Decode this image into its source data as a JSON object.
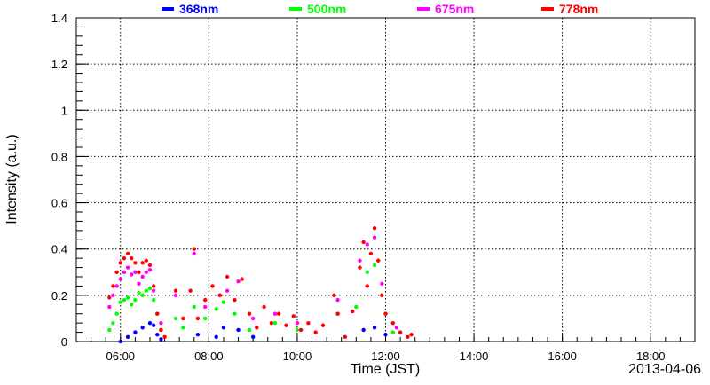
{
  "chart_data": {
    "type": "scatter",
    "xlabel": "Time (JST)",
    "ylabel": "Intensity (a.u.)",
    "date_label": "2013-04-06",
    "xlim": [
      "05:00",
      "19:00"
    ],
    "ylim": [
      0,
      1.4
    ],
    "x_ticks": [
      "06:00",
      "08:00",
      "10:00",
      "12:00",
      "14:00",
      "16:00",
      "18:00"
    ],
    "y_ticks": [
      "0",
      "0.2",
      "0.4",
      "0.6",
      "0.8",
      "1",
      "1.2",
      "1.4"
    ],
    "grid": true,
    "legend_position": "top",
    "series": [
      {
        "name": "368nm",
        "color": "#0000ff",
        "points": [
          [
            "06:00",
            0.0
          ],
          [
            "06:10",
            0.02
          ],
          [
            "06:20",
            0.04
          ],
          [
            "06:30",
            0.06
          ],
          [
            "06:40",
            0.08
          ],
          [
            "06:45",
            0.07
          ],
          [
            "06:50",
            0.03
          ],
          [
            "06:55",
            0.01
          ],
          [
            "07:45",
            0.03
          ],
          [
            "08:10",
            0.02
          ],
          [
            "08:20",
            0.06
          ],
          [
            "08:40",
            0.05
          ],
          [
            "09:00",
            0.02
          ],
          [
            "11:30",
            0.05
          ],
          [
            "11:45",
            0.06
          ],
          [
            "12:00",
            0.03
          ]
        ]
      },
      {
        "name": "500nm",
        "color": "#00ff00",
        "points": [
          [
            "05:45",
            0.05
          ],
          [
            "05:50",
            0.08
          ],
          [
            "05:55",
            0.12
          ],
          [
            "06:00",
            0.17
          ],
          [
            "06:05",
            0.18
          ],
          [
            "06:10",
            0.19
          ],
          [
            "06:15",
            0.16
          ],
          [
            "06:20",
            0.18
          ],
          [
            "06:25",
            0.21
          ],
          [
            "06:30",
            0.2
          ],
          [
            "06:35",
            0.22
          ],
          [
            "06:40",
            0.23
          ],
          [
            "06:45",
            0.18
          ],
          [
            "06:50",
            0.12
          ],
          [
            "06:55",
            0.05
          ],
          [
            "07:15",
            0.1
          ],
          [
            "07:25",
            0.06
          ],
          [
            "07:40",
            0.15
          ],
          [
            "07:55",
            0.1
          ],
          [
            "08:10",
            0.14
          ],
          [
            "08:20",
            0.17
          ],
          [
            "08:35",
            0.12
          ],
          [
            "08:55",
            0.05
          ],
          [
            "09:30",
            0.08
          ],
          [
            "10:00",
            0.05
          ],
          [
            "10:55",
            0.12
          ],
          [
            "11:20",
            0.15
          ],
          [
            "11:35",
            0.3
          ],
          [
            "11:45",
            0.33
          ],
          [
            "11:55",
            0.2
          ],
          [
            "12:10",
            0.04
          ]
        ]
      },
      {
        "name": "675nm",
        "color": "#ff00ff",
        "points": [
          [
            "05:45",
            0.15
          ],
          [
            "05:50",
            0.2
          ],
          [
            "05:55",
            0.24
          ],
          [
            "06:00",
            0.27
          ],
          [
            "06:05",
            0.3
          ],
          [
            "06:10",
            0.32
          ],
          [
            "06:15",
            0.29
          ],
          [
            "06:20",
            0.3
          ],
          [
            "06:25",
            0.25
          ],
          [
            "06:30",
            0.28
          ],
          [
            "06:35",
            0.3
          ],
          [
            "06:40",
            0.31
          ],
          [
            "06:45",
            0.22
          ],
          [
            "06:55",
            0.08
          ],
          [
            "07:15",
            0.2
          ],
          [
            "07:40",
            0.38
          ],
          [
            "07:55",
            0.15
          ],
          [
            "08:15",
            0.2
          ],
          [
            "08:25",
            0.22
          ],
          [
            "08:40",
            0.26
          ],
          [
            "09:00",
            0.1
          ],
          [
            "09:30",
            0.12
          ],
          [
            "10:00",
            0.08
          ],
          [
            "10:55",
            0.18
          ],
          [
            "11:25",
            0.35
          ],
          [
            "11:35",
            0.42
          ],
          [
            "11:45",
            0.45
          ],
          [
            "11:55",
            0.25
          ],
          [
            "12:15",
            0.06
          ]
        ]
      },
      {
        "name": "778nm",
        "color": "#ff0000",
        "points": [
          [
            "05:45",
            0.19
          ],
          [
            "05:50",
            0.24
          ],
          [
            "05:55",
            0.3
          ],
          [
            "06:00",
            0.34
          ],
          [
            "06:05",
            0.36
          ],
          [
            "06:10",
            0.38
          ],
          [
            "06:15",
            0.36
          ],
          [
            "06:20",
            0.34
          ],
          [
            "06:25",
            0.3
          ],
          [
            "06:30",
            0.34
          ],
          [
            "06:35",
            0.35
          ],
          [
            "06:40",
            0.33
          ],
          [
            "06:45",
            0.24
          ],
          [
            "06:50",
            0.12
          ],
          [
            "06:55",
            0.05
          ],
          [
            "07:00",
            0.02
          ],
          [
            "07:15",
            0.22
          ],
          [
            "07:25",
            0.1
          ],
          [
            "07:35",
            0.22
          ],
          [
            "07:40",
            0.4
          ],
          [
            "07:45",
            0.1
          ],
          [
            "07:55",
            0.18
          ],
          [
            "08:05",
            0.24
          ],
          [
            "08:15",
            0.2
          ],
          [
            "08:25",
            0.28
          ],
          [
            "08:35",
            0.18
          ],
          [
            "08:45",
            0.27
          ],
          [
            "08:55",
            0.12
          ],
          [
            "09:05",
            0.06
          ],
          [
            "09:15",
            0.15
          ],
          [
            "09:25",
            0.08
          ],
          [
            "09:35",
            0.12
          ],
          [
            "09:45",
            0.07
          ],
          [
            "09:55",
            0.11
          ],
          [
            "10:05",
            0.05
          ],
          [
            "10:15",
            0.08
          ],
          [
            "10:25",
            0.04
          ],
          [
            "10:35",
            0.07
          ],
          [
            "10:50",
            0.2
          ],
          [
            "10:55",
            0.12
          ],
          [
            "11:05",
            0.02
          ],
          [
            "11:15",
            0.13
          ],
          [
            "11:25",
            0.32
          ],
          [
            "11:30",
            0.43
          ],
          [
            "11:35",
            0.24
          ],
          [
            "11:40",
            0.38
          ],
          [
            "11:45",
            0.49
          ],
          [
            "11:50",
            0.35
          ],
          [
            "11:55",
            0.2
          ],
          [
            "12:00",
            0.12
          ],
          [
            "12:10",
            0.08
          ],
          [
            "12:20",
            0.04
          ],
          [
            "12:30",
            0.02
          ],
          [
            "12:35",
            0.03
          ]
        ]
      }
    ]
  }
}
